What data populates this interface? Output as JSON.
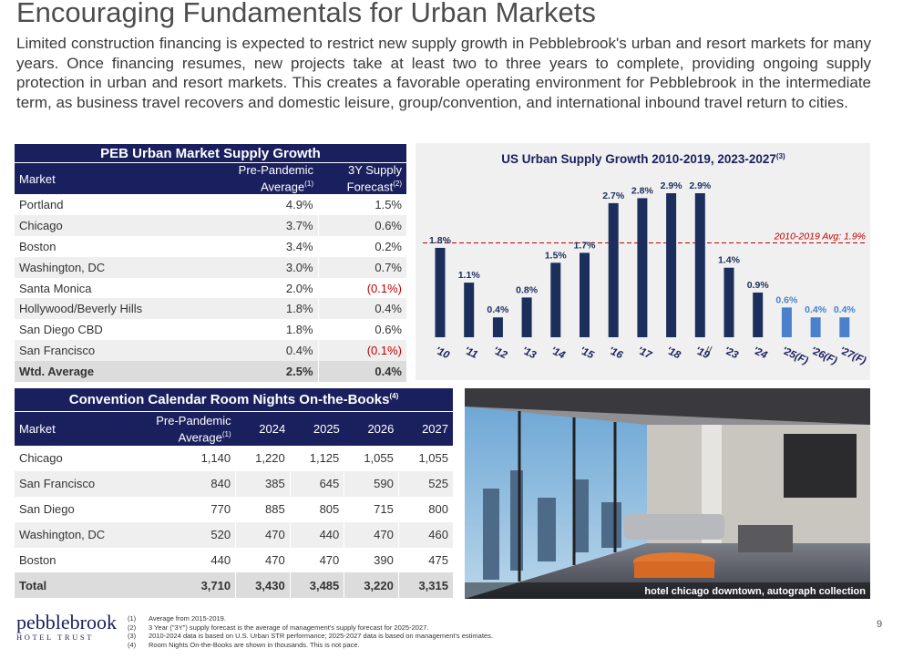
{
  "header": {
    "title": "Encouraging Fundamentals for Urban Markets"
  },
  "intro": "Limited construction financing is expected to restrict new supply growth in Pebblebrook's urban and resort markets for many years. Once financing resumes, new projects take at least two to three years to complete, providing ongoing supply protection in urban and resort markets. This creates a favorable operating environment for Pebblebrook in the intermediate term, as business travel recovers and domestic leisure, group/convention, and international inbound travel return to cities.",
  "supply_table": {
    "title": "PEB Urban Market Supply Growth",
    "columns": [
      {
        "label": "Market"
      },
      {
        "label": "Pre-Pandemic Average",
        "note": "(1)"
      },
      {
        "label": "3Y Supply Forecast",
        "note": "(2)"
      }
    ],
    "rows": [
      [
        "Portland",
        "4.9%",
        "1.5%"
      ],
      [
        "Chicago",
        "3.7%",
        "0.6%"
      ],
      [
        "Boston",
        "3.4%",
        "0.2%"
      ],
      [
        "Washington, DC",
        "3.0%",
        "0.7%"
      ],
      [
        "Santa Monica",
        "2.0%",
        "(0.1%)"
      ],
      [
        "Hollywood/Beverly Hills",
        "1.8%",
        "0.4%"
      ],
      [
        "San Diego CBD",
        "1.8%",
        "0.6%"
      ],
      [
        "San Francisco",
        "0.4%",
        "(0.1%)"
      ]
    ],
    "total": [
      "Wtd. Average",
      "2.5%",
      "0.4%"
    ]
  },
  "chart_data": {
    "type": "bar",
    "title": "US Urban Supply Growth 2010-2019, 2023-2027",
    "title_note": "(3)",
    "categories": [
      "'10",
      "'11",
      "'12",
      "'13",
      "'14",
      "'15",
      "'16",
      "'17",
      "'18",
      "'19",
      "'23",
      "'24",
      "'25(F)",
      "'26(F)",
      "'27(F)"
    ],
    "values": [
      1.8,
      1.1,
      0.4,
      0.8,
      1.5,
      1.7,
      2.7,
      2.8,
      2.9,
      2.9,
      1.4,
      0.9,
      0.6,
      0.4,
      0.4
    ],
    "value_labels": [
      "1.8%",
      "1.1%",
      "0.4%",
      "0.8%",
      "1.5%",
      "1.7%",
      "2.7%",
      "2.8%",
      "2.9%",
      "2.9%",
      "1.4%",
      "0.9%",
      "0.6%",
      "0.4%",
      "0.4%"
    ],
    "colors": [
      "#1c2e5c",
      "#1c2e5c",
      "#1c2e5c",
      "#1c2e5c",
      "#1c2e5c",
      "#1c2e5c",
      "#1c2e5c",
      "#1c2e5c",
      "#1c2e5c",
      "#1c2e5c",
      "#1c2e5c",
      "#1c2e5c",
      "#4a80cc",
      "#4a80cc",
      "#4a80cc"
    ],
    "reference_line": {
      "value": 1.9,
      "label": "2010-2019 Avg: 1.9%",
      "color": "#c00000"
    }
  },
  "convention_table": {
    "title": "Convention Calendar Room Nights On-the-Books",
    "title_note": "(4)",
    "columns": [
      {
        "label": "Market"
      },
      {
        "label": "Pre-Pandemic Average",
        "note": "(1)"
      },
      {
        "label": "2024"
      },
      {
        "label": "2025"
      },
      {
        "label": "2026"
      },
      {
        "label": "2027"
      }
    ],
    "rows": [
      [
        "Chicago",
        "1,140",
        "1,220",
        "1,125",
        "1,055",
        "1,055"
      ],
      [
        "San Francisco",
        "840",
        "385",
        "645",
        "590",
        "525"
      ],
      [
        "San Diego",
        "770",
        "885",
        "805",
        "715",
        "800"
      ],
      [
        "Washington, DC",
        "520",
        "470",
        "440",
        "470",
        "460"
      ],
      [
        "Boston",
        "440",
        "470",
        "470",
        "390",
        "475"
      ]
    ],
    "total": [
      "Total",
      "3,710",
      "3,430",
      "3,485",
      "3,220",
      "3,315"
    ]
  },
  "photo": {
    "caption": "hotel chicago downtown, autograph collection"
  },
  "footnotes": [
    {
      "marker": "(1)",
      "text": "Average from 2015-2019."
    },
    {
      "marker": "(2)",
      "text": "3 Year (\"3Y\") supply forecast is the average of management's supply forecast for 2025-2027."
    },
    {
      "marker": "(3)",
      "text": "2010-2024 data is based on U.S. Urban STR performance; 2025-2027 data is based on management's estimates."
    },
    {
      "marker": "(4)",
      "text": "Room Nights On-the-Books are shown in thousands. This is not pace."
    }
  ],
  "logo": {
    "name": "pebblebrook",
    "sub": "HOTEL TRUST"
  },
  "page_number": "9"
}
